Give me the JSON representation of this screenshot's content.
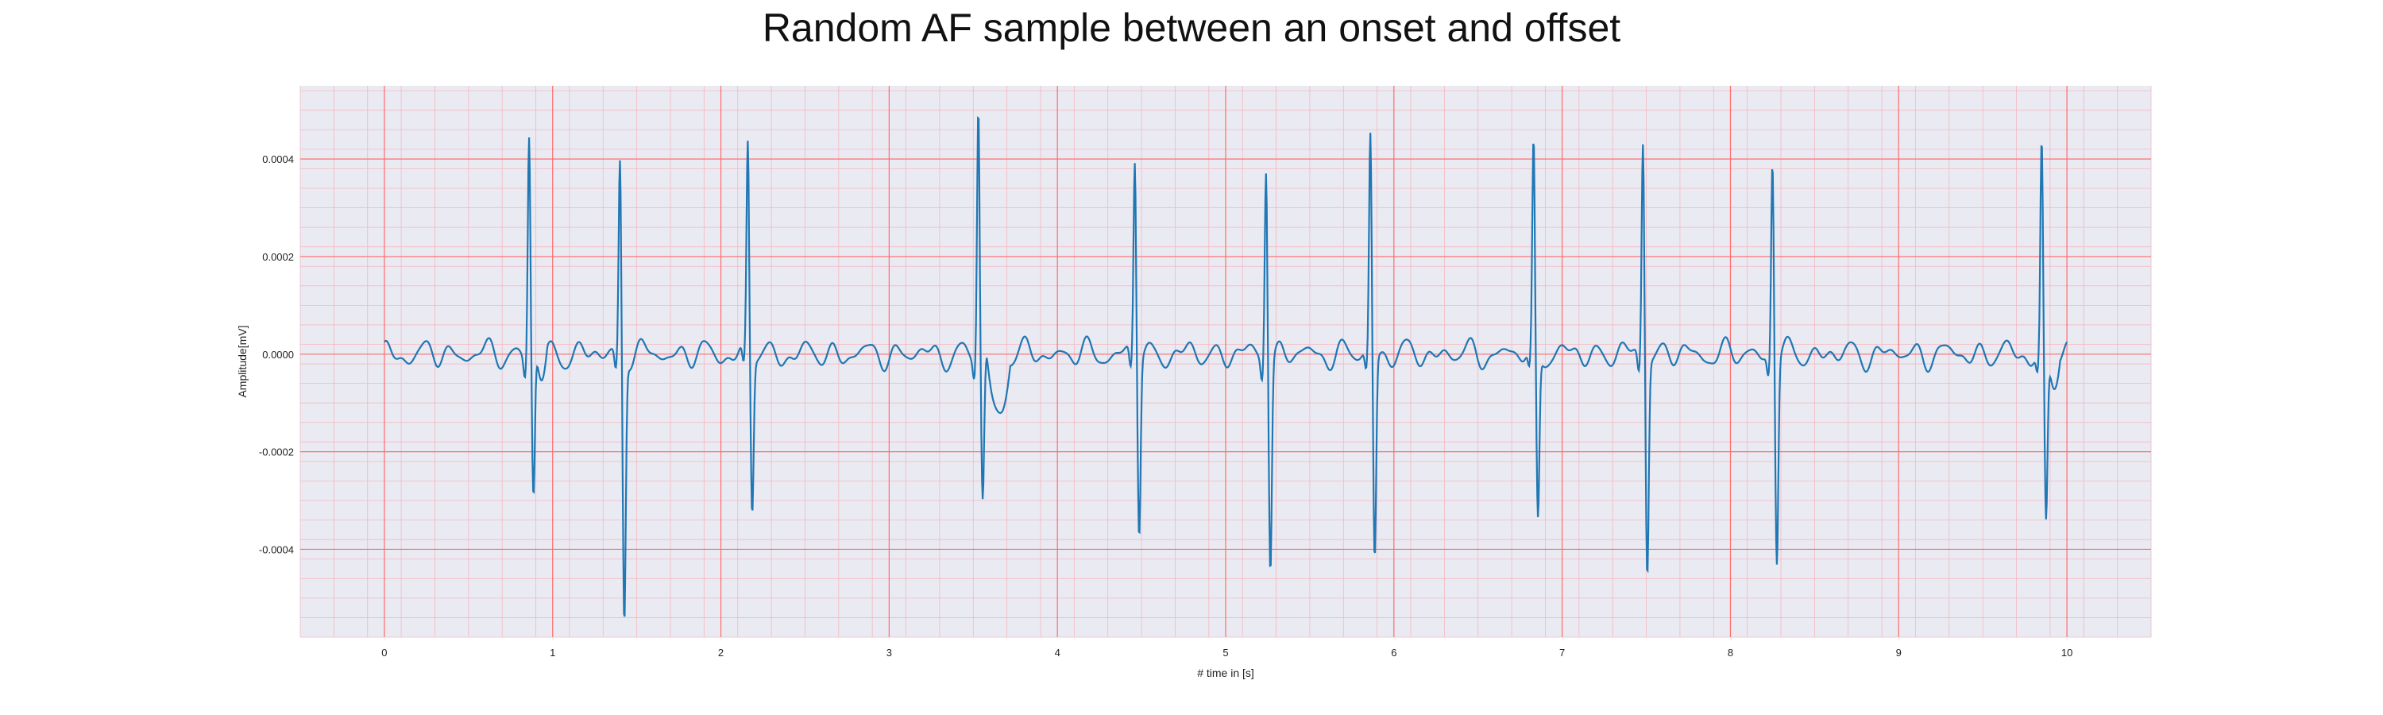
{
  "chart_data": {
    "type": "line",
    "title": "Random AF sample between an onset and offset",
    "xlabel": "# time in [s]",
    "ylabel": "Amplitude[mV]",
    "xlim": [
      -0.5,
      10.5
    ],
    "ylim": [
      -0.00058,
      0.00055
    ],
    "x_ticks": [
      0,
      1,
      2,
      3,
      4,
      5,
      6,
      7,
      8,
      9,
      10
    ],
    "x_tick_labels": [
      "0",
      "1",
      "2",
      "3",
      "4",
      "5",
      "6",
      "7",
      "8",
      "9",
      "10"
    ],
    "y_ticks": [
      -0.0004,
      -0.0002,
      0.0,
      0.0002,
      0.0004
    ],
    "y_tick_labels": [
      "-0.0004",
      "-0.0002",
      "0.0000",
      "0.0002",
      "0.0004"
    ],
    "grid": true,
    "minor_grid": true,
    "background_color": "#eaeaf2",
    "major_grid_color": "#ff6b6b",
    "minor_grid_color": "#f4b8c0",
    "series": [
      {
        "color": "#1f77b4",
        "x_range": [
          0,
          10
        ],
        "beats": [
          {
            "t": 0.86,
            "r": 0.000455,
            "s": -0.000295
          },
          {
            "t": 1.4,
            "r": 0.0004,
            "s": -0.000535
          },
          {
            "t": 2.16,
            "r": 0.00043,
            "s": -0.000315
          },
          {
            "t": 3.53,
            "r": 0.000505,
            "s": -0.000305
          },
          {
            "t": 4.46,
            "r": 0.000405,
            "s": -0.000355
          },
          {
            "t": 5.24,
            "r": 0.0004,
            "s": -0.000425
          },
          {
            "t": 5.86,
            "r": 0.00045,
            "s": -0.000415
          },
          {
            "t": 6.83,
            "r": 0.00042,
            "s": -0.00034
          },
          {
            "t": 7.48,
            "r": 0.00045,
            "s": -0.00043
          },
          {
            "t": 8.25,
            "r": 0.000405,
            "s": -0.000415
          },
          {
            "t": 9.85,
            "r": 0.000425,
            "s": -0.000355
          }
        ],
        "fibrillatory_amplitude": 3e-05,
        "post_beat_dips": [
          {
            "t_start": 3.58,
            "t_end": 3.72,
            "value": -0.00013
          },
          {
            "t_start": 0.9,
            "t_end": 0.97,
            "value": -5e-05
          },
          {
            "t_start": 9.88,
            "t_end": 9.96,
            "value": -6e-05
          }
        ]
      }
    ]
  }
}
